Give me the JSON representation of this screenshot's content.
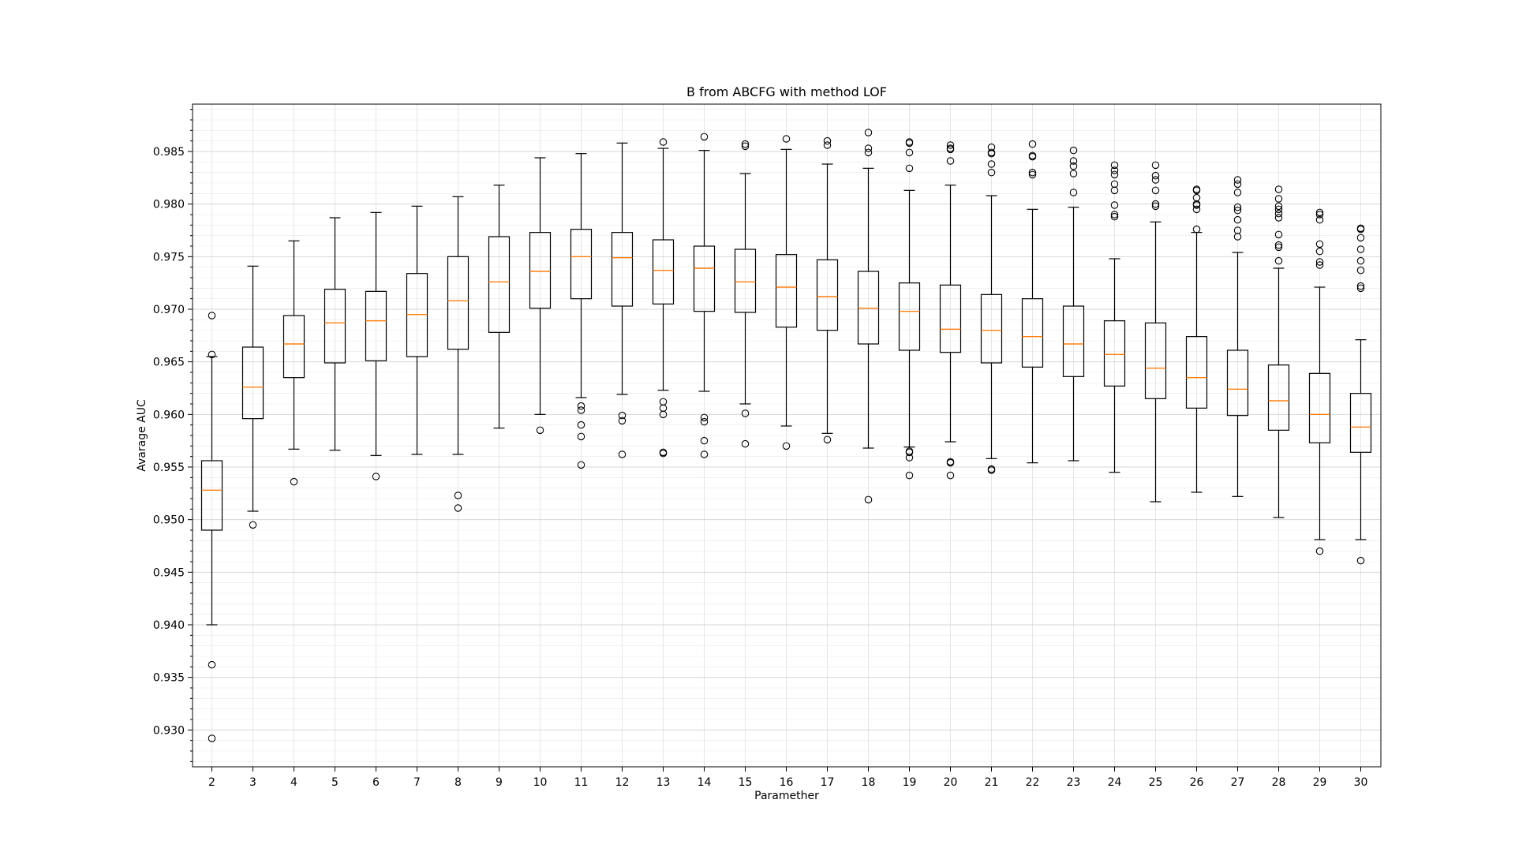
{
  "chart_data": {
    "type": "box",
    "title": "B from ABCFG with method LOF",
    "xlabel": "Paramether",
    "ylabel": "Avarage AUC",
    "ylim": [
      0.9265,
      0.9895
    ],
    "yticks": [
      "0.930",
      "0.935",
      "0.940",
      "0.945",
      "0.950",
      "0.955",
      "0.960",
      "0.965",
      "0.970",
      "0.975",
      "0.980",
      "0.985"
    ],
    "grid": "major and minor",
    "colors": {
      "box": "#000000",
      "median": "#ff7f0e",
      "grid": "#d3d3d3"
    },
    "boxes": [
      {
        "x": "2",
        "whislo": 0.94,
        "q1": 0.949,
        "med": 0.9528,
        "q3": 0.9556,
        "whishi": 0.9655,
        "fliers": [
          0.9694,
          0.9657,
          0.9362,
          0.9292
        ]
      },
      {
        "x": "3",
        "whislo": 0.9508,
        "q1": 0.9596,
        "med": 0.9626,
        "q3": 0.9664,
        "whishi": 0.9741,
        "fliers": [
          0.9495
        ]
      },
      {
        "x": "4",
        "whislo": 0.9567,
        "q1": 0.9635,
        "med": 0.9667,
        "q3": 0.9694,
        "whishi": 0.9765,
        "fliers": [
          0.9536
        ]
      },
      {
        "x": "5",
        "whislo": 0.9566,
        "q1": 0.9649,
        "med": 0.9687,
        "q3": 0.9719,
        "whishi": 0.9787,
        "fliers": []
      },
      {
        "x": "6",
        "whislo": 0.9561,
        "q1": 0.9651,
        "med": 0.9689,
        "q3": 0.9717,
        "whishi": 0.9792,
        "fliers": [
          0.9541
        ]
      },
      {
        "x": "7",
        "whislo": 0.9562,
        "q1": 0.9655,
        "med": 0.9695,
        "q3": 0.9734,
        "whishi": 0.9798,
        "fliers": []
      },
      {
        "x": "8",
        "whislo": 0.9562,
        "q1": 0.9662,
        "med": 0.9708,
        "q3": 0.975,
        "whishi": 0.9807,
        "fliers": [
          0.9523,
          0.9511
        ]
      },
      {
        "x": "9",
        "whislo": 0.9587,
        "q1": 0.9678,
        "med": 0.9726,
        "q3": 0.9769,
        "whishi": 0.9818,
        "fliers": []
      },
      {
        "x": "10",
        "whislo": 0.96,
        "q1": 0.9701,
        "med": 0.9736,
        "q3": 0.9773,
        "whishi": 0.9844,
        "fliers": [
          0.9585
        ]
      },
      {
        "x": "11",
        "whislo": 0.9616,
        "q1": 0.971,
        "med": 0.975,
        "q3": 0.9776,
        "whishi": 0.9848,
        "fliers": [
          0.9608,
          0.9604,
          0.959,
          0.9579,
          0.9552
        ]
      },
      {
        "x": "12",
        "whislo": 0.9619,
        "q1": 0.9703,
        "med": 0.9749,
        "q3": 0.9773,
        "whishi": 0.9858,
        "fliers": [
          0.9599,
          0.9594,
          0.9562
        ]
      },
      {
        "x": "13",
        "whislo": 0.9623,
        "q1": 0.9705,
        "med": 0.9737,
        "q3": 0.9766,
        "whishi": 0.9853,
        "fliers": [
          0.9859,
          0.9612,
          0.9606,
          0.96,
          0.9564,
          0.9563
        ]
      },
      {
        "x": "14",
        "whislo": 0.9622,
        "q1": 0.9698,
        "med": 0.9739,
        "q3": 0.976,
        "whishi": 0.9851,
        "fliers": [
          0.9864,
          0.9597,
          0.9593,
          0.9575,
          0.9562
        ]
      },
      {
        "x": "15",
        "whislo": 0.961,
        "q1": 0.9697,
        "med": 0.9726,
        "q3": 0.9757,
        "whishi": 0.9829,
        "fliers": [
          0.9857,
          0.9855,
          0.9601,
          0.9572
        ]
      },
      {
        "x": "16",
        "whislo": 0.9589,
        "q1": 0.9683,
        "med": 0.9721,
        "q3": 0.9752,
        "whishi": 0.9852,
        "fliers": [
          0.9862,
          0.957
        ]
      },
      {
        "x": "17",
        "whislo": 0.9582,
        "q1": 0.968,
        "med": 0.9712,
        "q3": 0.9747,
        "whishi": 0.9838,
        "fliers": [
          0.986,
          0.9856,
          0.9576
        ]
      },
      {
        "x": "18",
        "whislo": 0.9568,
        "q1": 0.9667,
        "med": 0.9701,
        "q3": 0.9736,
        "whishi": 0.9834,
        "fliers": [
          0.9868,
          0.9853,
          0.9849,
          0.9519
        ]
      },
      {
        "x": "19",
        "whislo": 0.9569,
        "q1": 0.9661,
        "med": 0.9698,
        "q3": 0.9725,
        "whishi": 0.9813,
        "fliers": [
          0.9859,
          0.9858,
          0.9849,
          0.9834,
          0.9565,
          0.9564,
          0.9559,
          0.9542
        ]
      },
      {
        "x": "20",
        "whislo": 0.9574,
        "q1": 0.9659,
        "med": 0.9681,
        "q3": 0.9723,
        "whishi": 0.9818,
        "fliers": [
          0.9856,
          0.9853,
          0.9852,
          0.9841,
          0.9555,
          0.9554,
          0.9542
        ]
      },
      {
        "x": "21",
        "whislo": 0.9558,
        "q1": 0.9649,
        "med": 0.968,
        "q3": 0.9714,
        "whishi": 0.9808,
        "fliers": [
          0.9854,
          0.9849,
          0.9848,
          0.9838,
          0.983,
          0.9548,
          0.9547
        ]
      },
      {
        "x": "22",
        "whislo": 0.9554,
        "q1": 0.9645,
        "med": 0.9674,
        "q3": 0.971,
        "whishi": 0.9795,
        "fliers": [
          0.9857,
          0.9846,
          0.9845,
          0.983,
          0.9828
        ]
      },
      {
        "x": "23",
        "whislo": 0.9556,
        "q1": 0.9636,
        "med": 0.9667,
        "q3": 0.9703,
        "whishi": 0.9797,
        "fliers": [
          0.9851,
          0.9841,
          0.9836,
          0.9829,
          0.9811
        ]
      },
      {
        "x": "24",
        "whislo": 0.9545,
        "q1": 0.9627,
        "med": 0.9657,
        "q3": 0.9689,
        "whishi": 0.9748,
        "fliers": [
          0.9837,
          0.9832,
          0.9828,
          0.9819,
          0.9813,
          0.9799,
          0.979,
          0.9788
        ]
      },
      {
        "x": "25",
        "whislo": 0.9517,
        "q1": 0.9615,
        "med": 0.9644,
        "q3": 0.9687,
        "whishi": 0.9783,
        "fliers": [
          0.9837,
          0.9827,
          0.9823,
          0.9813,
          0.98,
          0.9798
        ]
      },
      {
        "x": "26",
        "whislo": 0.9526,
        "q1": 0.9606,
        "med": 0.9635,
        "q3": 0.9674,
        "whishi": 0.9773,
        "fliers": [
          0.9814,
          0.9813,
          0.9806,
          0.98,
          0.9799,
          0.9795,
          0.9776
        ]
      },
      {
        "x": "27",
        "whislo": 0.9522,
        "q1": 0.9599,
        "med": 0.9624,
        "q3": 0.9661,
        "whishi": 0.9754,
        "fliers": [
          0.9823,
          0.9819,
          0.9811,
          0.9797,
          0.9794,
          0.9785,
          0.9775,
          0.9769
        ]
      },
      {
        "x": "28",
        "whislo": 0.9502,
        "q1": 0.9585,
        "med": 0.9613,
        "q3": 0.9647,
        "whishi": 0.9739,
        "fliers": [
          0.9814,
          0.9805,
          0.9798,
          0.9795,
          0.9791,
          0.9787,
          0.9771,
          0.9761,
          0.9759,
          0.9746
        ]
      },
      {
        "x": "29",
        "whislo": 0.9481,
        "q1": 0.9573,
        "med": 0.96,
        "q3": 0.9639,
        "whishi": 0.9721,
        "fliers": [
          0.9792,
          0.979,
          0.9785,
          0.9762,
          0.9755,
          0.9745,
          0.9742,
          0.947
        ]
      },
      {
        "x": "30",
        "whislo": 0.9481,
        "q1": 0.9564,
        "med": 0.9588,
        "q3": 0.962,
        "whishi": 0.9671,
        "fliers": [
          0.9777,
          0.9776,
          0.9768,
          0.9757,
          0.9746,
          0.9737,
          0.9722,
          0.972,
          0.9461
        ]
      }
    ]
  }
}
